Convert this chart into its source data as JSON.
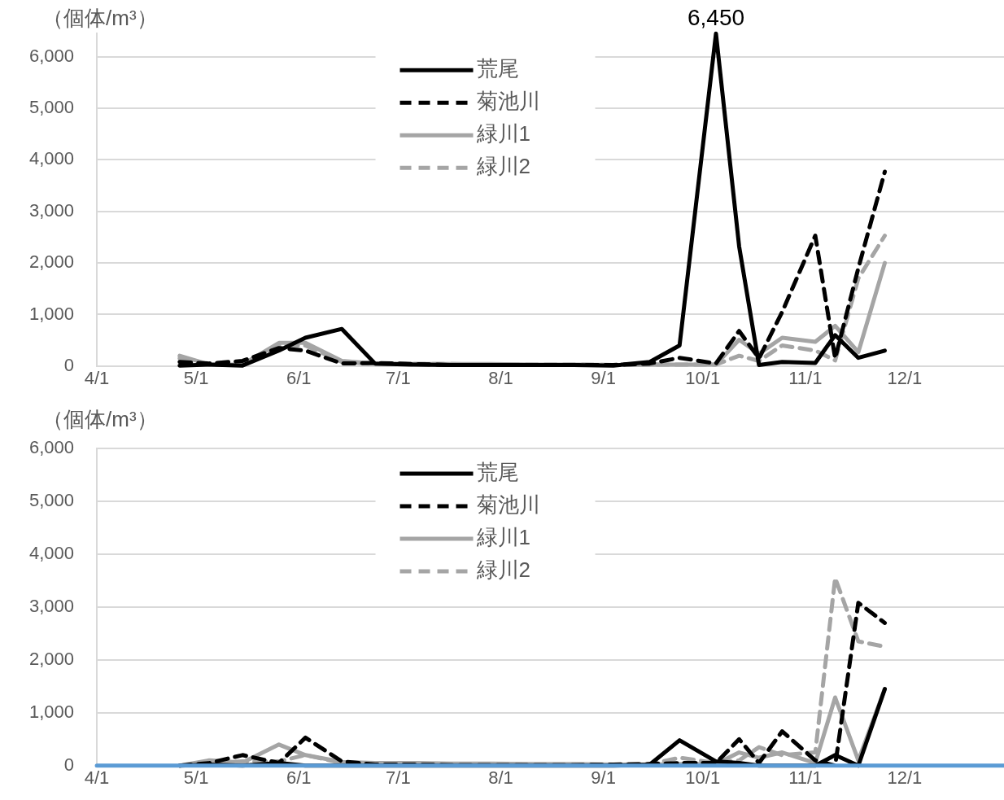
{
  "chart_data": [
    {
      "type": "line",
      "ylabel": "（個体/m³）",
      "x": [
        "--04-26",
        "--05-05",
        "--05-15",
        "--05-26",
        "--06-03",
        "--06-14",
        "--06-24",
        "--07-05",
        "--07-17",
        "--07-29",
        "--08-11",
        "--08-23",
        "--09-04",
        "--09-15",
        "--09-24",
        "--10-05",
        "--10-12",
        "--10-18",
        "--10-25",
        "--11-04",
        "--11-10",
        "--11-17",
        "--11-25"
      ],
      "xlim": [
        "--04-01",
        "--12-31"
      ],
      "xticks": [
        {
          "value": "--04-01",
          "label": "4/1"
        },
        {
          "value": "--05-01",
          "label": "5/1"
        },
        {
          "value": "--06-01",
          "label": "6/1"
        },
        {
          "value": "--07-01",
          "label": "7/1"
        },
        {
          "value": "--08-01",
          "label": "8/1"
        },
        {
          "value": "--09-01",
          "label": "9/1"
        },
        {
          "value": "--10-01",
          "label": "10/1"
        },
        {
          "value": "--11-01",
          "label": "11/1"
        },
        {
          "value": "--12-01",
          "label": "12/1"
        }
      ],
      "ylim": [
        0,
        6450
      ],
      "yticks": [
        0,
        {
          "value": 1000,
          "label": "1,000"
        },
        {
          "value": 2000,
          "label": "2,000"
        },
        {
          "value": 3000,
          "label": "3,000"
        },
        {
          "value": 4000,
          "label": "4,000"
        },
        {
          "value": 5000,
          "label": "5,000"
        },
        {
          "value": 6000,
          "label": "6,000"
        }
      ],
      "grid": "y",
      "legend": "top",
      "series": [
        {
          "name": "荒尾",
          "color": "#000000",
          "line_style": "solid",
          "values": [
            10,
            30,
            10,
            300,
            550,
            720,
            50,
            30,
            20,
            20,
            20,
            20,
            10,
            80,
            400,
            6450,
            2320,
            20,
            80,
            60,
            600,
            160,
            300
          ],
          "value_labels": [
            null,
            null,
            null,
            null,
            null,
            null,
            null,
            null,
            null,
            null,
            null,
            null,
            null,
            null,
            null,
            "6,450",
            null,
            null,
            null,
            null,
            null,
            null,
            null
          ]
        },
        {
          "name": "菊池川",
          "color": "#000000",
          "line_style": "dashed",
          "values": [
            80,
            50,
            100,
            350,
            300,
            50,
            60,
            40,
            20,
            20,
            20,
            20,
            20,
            50,
            160,
            50,
            680,
            150,
            1050,
            2530,
            150,
            1900,
            3770
          ]
        },
        {
          "name": "緑川1",
          "color": "#a5a5a5",
          "line_style": "solid",
          "values": [
            200,
            30,
            30,
            450,
            450,
            100,
            50,
            40,
            40,
            40,
            30,
            30,
            20,
            30,
            30,
            30,
            510,
            240,
            550,
            470,
            780,
            270,
            2000
          ]
        },
        {
          "name": "緑川2",
          "color": "#a5a5a5",
          "line_style": "dashed",
          "values": [
            150,
            20,
            30,
            400,
            400,
            80,
            40,
            40,
            40,
            30,
            30,
            30,
            20,
            30,
            30,
            30,
            200,
            100,
            400,
            300,
            110,
            1700,
            2530
          ]
        }
      ]
    },
    {
      "type": "line",
      "ylabel": "（個体/m³）",
      "x": [
        "--04-26",
        "--05-05",
        "--05-15",
        "--05-26",
        "--06-03",
        "--06-14",
        "--06-24",
        "--07-05",
        "--07-17",
        "--07-29",
        "--08-11",
        "--08-23",
        "--09-04",
        "--09-15",
        "--09-24",
        "--10-05",
        "--10-12",
        "--10-18",
        "--10-25",
        "--11-04",
        "--11-10",
        "--11-17",
        "--11-25"
      ],
      "xlim": [
        "--04-01",
        "--12-31"
      ],
      "xticks": [
        {
          "value": "--04-01",
          "label": "4/1"
        },
        {
          "value": "--05-01",
          "label": "5/1"
        },
        {
          "value": "--06-01",
          "label": "6/1"
        },
        {
          "value": "--07-01",
          "label": "7/1"
        },
        {
          "value": "--08-01",
          "label": "8/1"
        },
        {
          "value": "--09-01",
          "label": "9/1"
        },
        {
          "value": "--10-01",
          "label": "10/1"
        },
        {
          "value": "--11-01",
          "label": "11/1"
        },
        {
          "value": "--12-01",
          "label": "12/1"
        }
      ],
      "ylim": [
        0,
        6000
      ],
      "yticks": [
        0,
        {
          "value": 1000,
          "label": "1,000"
        },
        {
          "value": 2000,
          "label": "2,000"
        },
        {
          "value": 3000,
          "label": "3,000"
        },
        {
          "value": 4000,
          "label": "4,000"
        },
        {
          "value": 5000,
          "label": "5,000"
        },
        {
          "value": 6000,
          "label": "6,000"
        }
      ],
      "grid": "y",
      "legend": "top",
      "series": [
        {
          "color": "#5b9bd5",
          "line_style": "solid",
          "x": [
            "--04-01",
            "--12-31"
          ],
          "values": [
            0,
            0
          ]
        },
        {
          "name": "荒尾",
          "color": "#000000",
          "line_style": "solid",
          "values": [
            0,
            20,
            0,
            50,
            0,
            0,
            0,
            0,
            0,
            0,
            0,
            0,
            0,
            20,
            480,
            80,
            50,
            0,
            0,
            0,
            200,
            0,
            1450
          ]
        },
        {
          "name": "菊池川",
          "color": "#000000",
          "line_style": "dashed",
          "values": [
            0,
            50,
            200,
            50,
            530,
            80,
            20,
            20,
            10,
            10,
            10,
            10,
            20,
            30,
            50,
            50,
            500,
            50,
            650,
            100,
            0,
            3080,
            2700
          ]
        },
        {
          "name": "緑川1",
          "color": "#a5a5a5",
          "line_style": "solid",
          "values": [
            0,
            100,
            60,
            400,
            200,
            70,
            50,
            50,
            40,
            40,
            30,
            30,
            20,
            20,
            30,
            30,
            250,
            150,
            250,
            50,
            1290,
            100,
            1450
          ]
        },
        {
          "name": "緑川2",
          "color": "#a5a5a5",
          "line_style": "dashed",
          "values": [
            0,
            50,
            80,
            80,
            200,
            50,
            40,
            40,
            30,
            30,
            20,
            20,
            20,
            30,
            150,
            50,
            100,
            350,
            200,
            250,
            3550,
            2350,
            2250
          ]
        }
      ]
    }
  ]
}
